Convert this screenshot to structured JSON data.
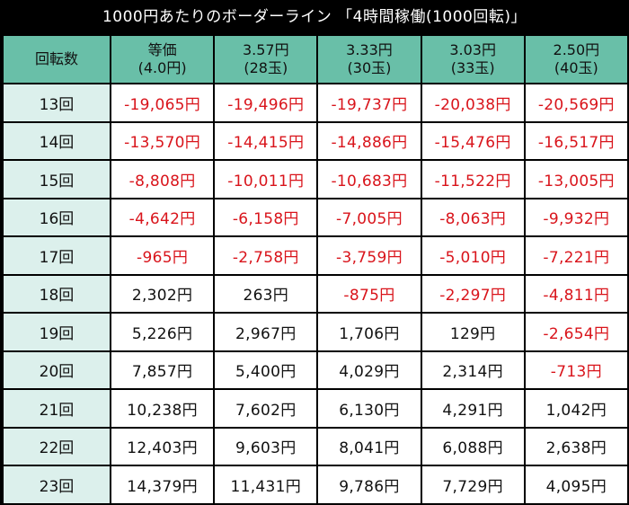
{
  "title": "1000円あたりのボーダーライン 「4時間稼働(1000回転)」",
  "header": {
    "corner": "回転数",
    "columns": [
      {
        "line1": "等価",
        "line2": "(4.0円)"
      },
      {
        "line1": "3.57円",
        "line2": "(28玉)"
      },
      {
        "line1": "3.33円",
        "line2": "(30玉)"
      },
      {
        "line1": "3.03円",
        "line2": "(33玉)"
      },
      {
        "line1": "2.50円",
        "line2": "(40玉)"
      }
    ]
  },
  "rows": [
    {
      "label": "13回",
      "cells": [
        "-19,065円",
        "-19,496円",
        "-19,737円",
        "-20,038円",
        "-20,569円"
      ]
    },
    {
      "label": "14回",
      "cells": [
        "-13,570円",
        "-14,415円",
        "-14,886円",
        "-15,476円",
        "-16,517円"
      ]
    },
    {
      "label": "15回",
      "cells": [
        "-8,808円",
        "-10,011円",
        "-10,683円",
        "-11,522円",
        "-13,005円"
      ]
    },
    {
      "label": "16回",
      "cells": [
        "-4,642円",
        "-6,158円",
        "-7,005円",
        "-8,063円",
        "-9,932円"
      ]
    },
    {
      "label": "17回",
      "cells": [
        "-965円",
        "-2,758円",
        "-3,759円",
        "-5,010円",
        "-7,221円"
      ]
    },
    {
      "label": "18回",
      "cells": [
        "2,302円",
        "263円",
        "-875円",
        "-2,297円",
        "-4,811円"
      ]
    },
    {
      "label": "19回",
      "cells": [
        "5,226円",
        "2,967円",
        "1,706円",
        "129円",
        "-2,654円"
      ]
    },
    {
      "label": "20回",
      "cells": [
        "7,857円",
        "5,400円",
        "4,029円",
        "2,314円",
        "-713円"
      ]
    },
    {
      "label": "21回",
      "cells": [
        "10,238円",
        "7,602円",
        "6,130円",
        "4,291円",
        "1,042円"
      ]
    },
    {
      "label": "22回",
      "cells": [
        "12,403円",
        "9,603円",
        "8,041円",
        "6,088円",
        "2,638円"
      ]
    },
    {
      "label": "23回",
      "cells": [
        "14,379円",
        "11,431円",
        "9,786円",
        "7,729円",
        "4,095円"
      ]
    }
  ],
  "colors": {
    "background": "#000000",
    "header_bg": "#69bfa8",
    "row_label_bg": "#dcf0ec",
    "negative_text": "#d9141b",
    "positive_text": "#111111"
  }
}
